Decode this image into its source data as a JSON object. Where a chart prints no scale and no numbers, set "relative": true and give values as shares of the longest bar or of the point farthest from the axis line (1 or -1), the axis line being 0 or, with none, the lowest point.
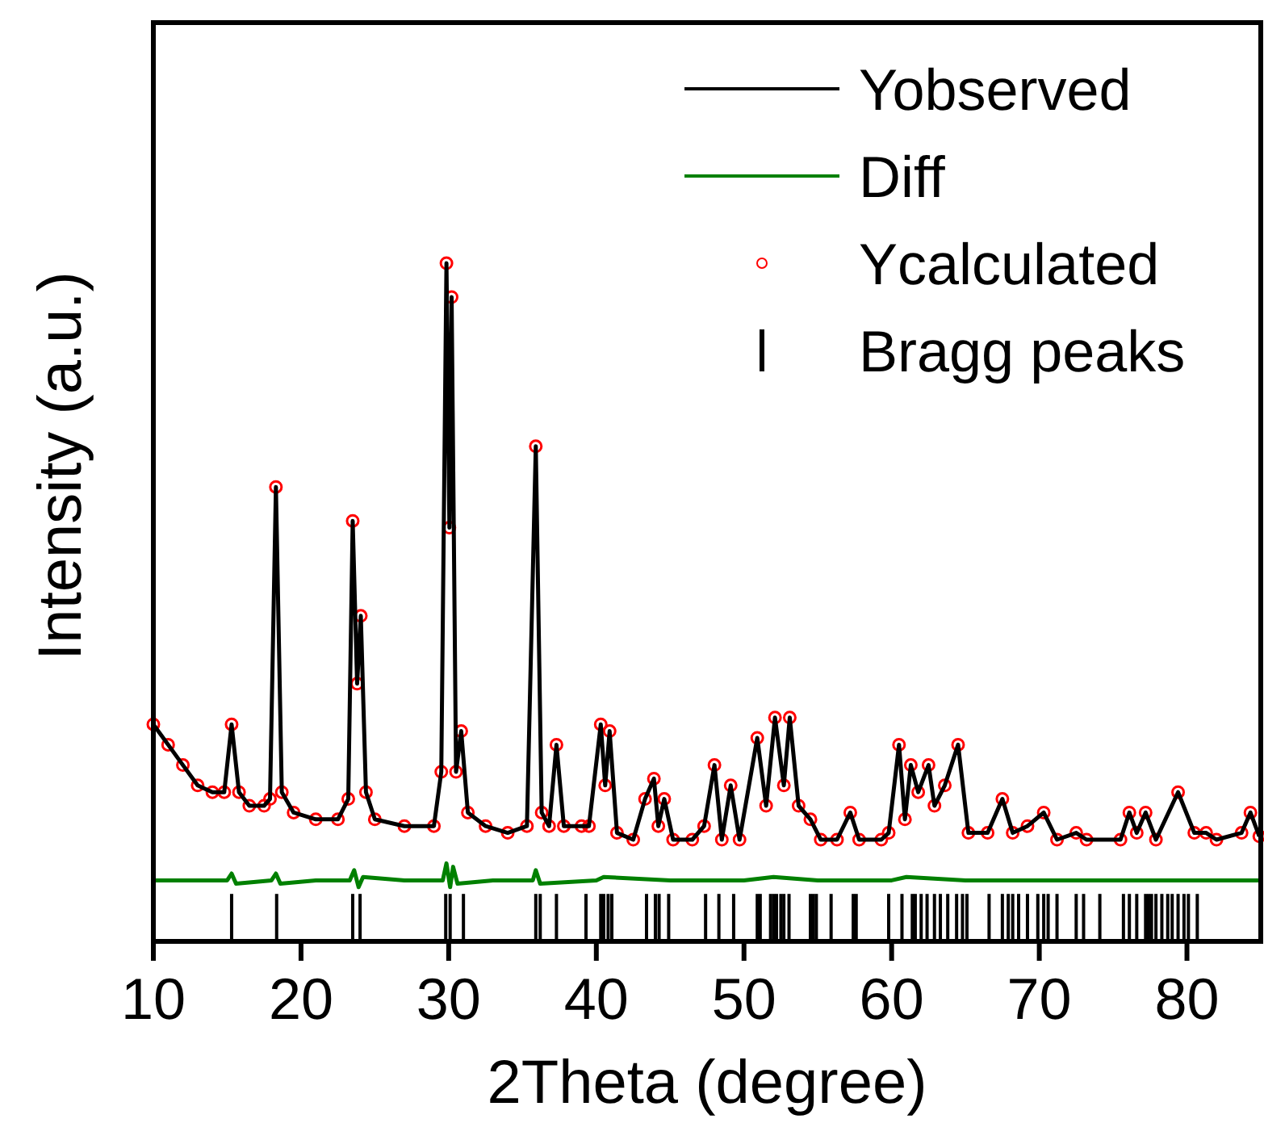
{
  "chart_data": {
    "type": "line",
    "xlabel": "2Theta (degree)",
    "ylabel": "Intensity (a.u.)",
    "relative": true,
    "xlim": [
      10,
      85
    ],
    "xticks": [
      10,
      20,
      30,
      40,
      50,
      60,
      70,
      80
    ],
    "legend": "top right",
    "series": [
      {
        "name": "Ycalculated",
        "type": "scatter",
        "marker": "circle",
        "color": "#ff0000",
        "x": [
          10,
          11,
          12,
          13,
          14,
          14.8,
          15.3,
          15.8,
          16.5,
          17.5,
          17.9,
          18.3,
          18.7,
          19.5,
          21,
          22.5,
          23.2,
          23.5,
          23.8,
          24.05,
          24.4,
          25,
          27,
          29,
          29.5,
          29.85,
          30.05,
          30.2,
          30.5,
          30.85,
          31.3,
          32.5,
          34,
          35.3,
          35.9,
          36.3,
          36.8,
          37.3,
          37.8,
          39,
          39.5,
          40.3,
          40.6,
          40.9,
          41.4,
          42.5,
          43.3,
          43.9,
          44.2,
          44.6,
          45.2,
          46.5,
          47.3,
          48,
          48.5,
          49.1,
          49.7,
          50.9,
          51.5,
          52.1,
          52.7,
          53.1,
          53.7,
          54.5,
          55.2,
          56.3,
          57.2,
          57.8,
          59.3,
          59.8,
          60.5,
          60.9,
          61.3,
          61.8,
          62.5,
          62.9,
          63.6,
          64.5,
          65.2,
          66.5,
          67.5,
          68.2,
          69.2,
          70.3,
          71.2,
          72.5,
          73.2,
          75.5,
          76.1,
          76.6,
          77.2,
          77.9,
          79.4,
          80.5,
          81.3,
          82,
          83.7,
          84.3,
          84.9
        ],
        "values": [
          0.32,
          0.29,
          0.26,
          0.23,
          0.22,
          0.22,
          0.32,
          0.22,
          0.2,
          0.2,
          0.21,
          0.67,
          0.22,
          0.19,
          0.18,
          0.18,
          0.21,
          0.62,
          0.38,
          0.48,
          0.22,
          0.18,
          0.17,
          0.17,
          0.25,
          1.0,
          0.61,
          0.95,
          0.25,
          0.31,
          0.19,
          0.17,
          0.16,
          0.17,
          0.73,
          0.19,
          0.17,
          0.29,
          0.17,
          0.17,
          0.17,
          0.32,
          0.23,
          0.31,
          0.16,
          0.15,
          0.21,
          0.24,
          0.17,
          0.21,
          0.15,
          0.15,
          0.17,
          0.26,
          0.15,
          0.23,
          0.15,
          0.3,
          0.2,
          0.33,
          0.23,
          0.33,
          0.2,
          0.18,
          0.15,
          0.15,
          0.19,
          0.15,
          0.15,
          0.16,
          0.29,
          0.18,
          0.26,
          0.22,
          0.26,
          0.2,
          0.23,
          0.29,
          0.16,
          0.16,
          0.21,
          0.16,
          0.17,
          0.19,
          0.15,
          0.16,
          0.15,
          0.15,
          0.19,
          0.16,
          0.19,
          0.15,
          0.22,
          0.16,
          0.16,
          0.15,
          0.16,
          0.19,
          0.155
        ]
      },
      {
        "name": "Yobserved",
        "color": "#000000",
        "x": [
          10,
          11,
          12,
          13,
          14,
          14.8,
          15.3,
          15.8,
          16.5,
          17.5,
          17.9,
          18.3,
          18.7,
          19.5,
          21,
          22.5,
          23.2,
          23.5,
          23.8,
          24.05,
          24.4,
          25,
          27,
          29,
          29.5,
          29.85,
          30.05,
          30.2,
          30.5,
          30.85,
          31.3,
          32.5,
          34,
          35.3,
          35.9,
          36.3,
          36.8,
          37.3,
          37.8,
          39,
          39.5,
          40.3,
          40.6,
          40.9,
          41.4,
          42.5,
          43.3,
          43.9,
          44.2,
          44.6,
          45.2,
          46.5,
          47.3,
          48,
          48.5,
          49.1,
          49.7,
          50.9,
          51.5,
          52.1,
          52.7,
          53.1,
          53.7,
          54.5,
          55.2,
          56.3,
          57.2,
          57.8,
          59.3,
          59.8,
          60.5,
          60.9,
          61.3,
          61.8,
          62.5,
          62.9,
          63.6,
          64.5,
          65.2,
          66.5,
          67.5,
          68.2,
          69.2,
          70.3,
          71.2,
          72.5,
          73.2,
          75.5,
          76.1,
          76.6,
          77.2,
          77.9,
          79.4,
          80.5,
          81.3,
          82,
          83.7,
          84.3,
          84.9
        ],
        "values": [
          0.32,
          0.29,
          0.26,
          0.23,
          0.22,
          0.22,
          0.32,
          0.22,
          0.2,
          0.2,
          0.21,
          0.67,
          0.22,
          0.19,
          0.18,
          0.18,
          0.21,
          0.62,
          0.38,
          0.48,
          0.22,
          0.18,
          0.17,
          0.17,
          0.25,
          1.0,
          0.61,
          0.95,
          0.25,
          0.31,
          0.19,
          0.17,
          0.16,
          0.17,
          0.73,
          0.19,
          0.17,
          0.29,
          0.17,
          0.17,
          0.17,
          0.32,
          0.23,
          0.31,
          0.16,
          0.15,
          0.21,
          0.24,
          0.17,
          0.21,
          0.15,
          0.15,
          0.17,
          0.26,
          0.15,
          0.23,
          0.15,
          0.3,
          0.2,
          0.33,
          0.23,
          0.33,
          0.2,
          0.18,
          0.15,
          0.15,
          0.19,
          0.15,
          0.15,
          0.16,
          0.29,
          0.18,
          0.26,
          0.22,
          0.26,
          0.2,
          0.23,
          0.29,
          0.16,
          0.16,
          0.21,
          0.16,
          0.17,
          0.19,
          0.15,
          0.16,
          0.15,
          0.15,
          0.19,
          0.16,
          0.19,
          0.15,
          0.22,
          0.16,
          0.16,
          0.15,
          0.16,
          0.19,
          0.155
        ]
      },
      {
        "name": "Diff",
        "type": "line",
        "color": "#008000",
        "x": [
          10,
          12,
          15,
          15.3,
          15.6,
          18,
          18.3,
          18.6,
          21,
          23.3,
          23.6,
          23.9,
          24.2,
          27,
          29.6,
          29.85,
          30.1,
          30.3,
          30.6,
          33,
          35.7,
          35.9,
          36.2,
          40,
          40.5,
          45,
          50,
          52,
          55,
          60,
          61,
          65,
          70,
          75,
          80,
          85
        ],
        "values": [
          0.09,
          0.09,
          0.09,
          0.1,
          0.085,
          0.09,
          0.1,
          0.085,
          0.09,
          0.09,
          0.105,
          0.08,
          0.095,
          0.09,
          0.09,
          0.115,
          0.08,
          0.11,
          0.085,
          0.09,
          0.09,
          0.105,
          0.085,
          0.09,
          0.095,
          0.09,
          0.09,
          0.095,
          0.09,
          0.09,
          0.095,
          0.09,
          0.09,
          0.09,
          0.09,
          0.09
        ]
      },
      {
        "name": "Bragg peaks",
        "type": "bar",
        "color": "#000000",
        "x": [
          15.3,
          18.35,
          23.5,
          24.0,
          29.8,
          30.1,
          31.0,
          35.9,
          36.2,
          37.3,
          39.3,
          40.3,
          40.5,
          40.8,
          41.05,
          43.4,
          44.0,
          44.25,
          44.9,
          47.4,
          48.3,
          49.3,
          50.9,
          51.1,
          51.8,
          52.0,
          52.2,
          52.5,
          52.7,
          53.05,
          54.5,
          54.7,
          54.9,
          55.9,
          57.4,
          57.6,
          59.8,
          60.7,
          61.4,
          61.6,
          62.0,
          62.4,
          62.9,
          63.3,
          63.8,
          64.4,
          64.8,
          65.1,
          66.6,
          67.5,
          67.9,
          68.2,
          68.6,
          69.2,
          69.9,
          70.3,
          70.6,
          71.2,
          72.5,
          73.0,
          74.1,
          75.7,
          76.1,
          76.6,
          77.2,
          77.4,
          77.6,
          77.9,
          78.3,
          78.7,
          79.0,
          79.4,
          79.8,
          80.1,
          80.7
        ],
        "values": [
          0.07,
          0.07,
          0.07,
          0.07,
          0.07,
          0.07,
          0.07,
          0.07,
          0.07,
          0.07,
          0.07,
          0.07,
          0.07,
          0.07,
          0.07,
          0.07,
          0.07,
          0.07,
          0.07,
          0.07,
          0.07,
          0.07,
          0.07,
          0.07,
          0.07,
          0.07,
          0.07,
          0.07,
          0.07,
          0.07,
          0.07,
          0.07,
          0.07,
          0.07,
          0.07,
          0.07,
          0.07,
          0.07,
          0.07,
          0.07,
          0.07,
          0.07,
          0.07,
          0.07,
          0.07,
          0.07,
          0.07,
          0.07,
          0.07,
          0.07,
          0.07,
          0.07,
          0.07,
          0.07,
          0.07,
          0.07,
          0.07,
          0.07,
          0.07,
          0.07,
          0.07,
          0.07,
          0.07,
          0.07,
          0.07,
          0.07,
          0.07,
          0.07,
          0.07,
          0.07,
          0.07,
          0.07,
          0.07,
          0.07,
          0.07
        ]
      }
    ]
  }
}
